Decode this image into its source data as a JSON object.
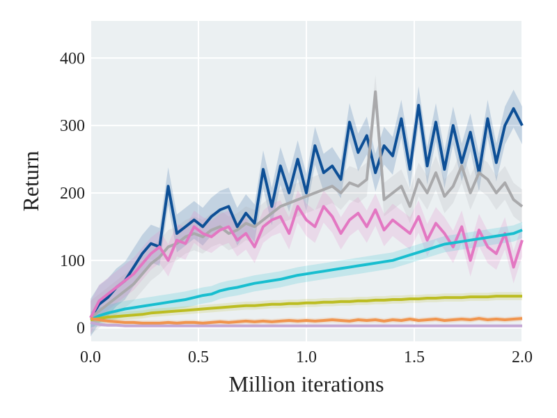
{
  "chart_data": {
    "type": "line",
    "xlabel": "Million iterations",
    "ylabel": "Return",
    "xlim": [
      0.0,
      2.0
    ],
    "ylim": [
      -20,
      455
    ],
    "xticks": [
      0.0,
      0.5,
      1.0,
      1.5,
      2.0
    ],
    "xtick_labels": [
      "0.0",
      "0.5",
      "1.0",
      "1.5",
      "2.0"
    ],
    "yticks": [
      0,
      100,
      200,
      300,
      400
    ],
    "ytick_labels": [
      "0",
      "100",
      "200",
      "300",
      "400"
    ],
    "grid": true,
    "background": "#ebf0f2",
    "x": [
      0.0,
      0.04,
      0.08,
      0.12,
      0.16,
      0.2,
      0.24,
      0.28,
      0.32,
      0.36,
      0.4,
      0.44,
      0.48,
      0.52,
      0.56,
      0.6,
      0.64,
      0.68,
      0.72,
      0.76,
      0.8,
      0.84,
      0.88,
      0.92,
      0.96,
      1.0,
      1.04,
      1.08,
      1.12,
      1.16,
      1.2,
      1.24,
      1.28,
      1.32,
      1.36,
      1.4,
      1.44,
      1.48,
      1.52,
      1.56,
      1.6,
      1.64,
      1.68,
      1.72,
      1.76,
      1.8,
      1.84,
      1.88,
      1.92,
      1.96,
      2.0
    ],
    "series": [
      {
        "color": "#0d4f96",
        "band": 28,
        "values": [
          15,
          35,
          45,
          60,
          70,
          90,
          110,
          125,
          120,
          210,
          140,
          150,
          160,
          150,
          165,
          175,
          180,
          150,
          170,
          155,
          235,
          180,
          240,
          200,
          250,
          200,
          270,
          230,
          240,
          220,
          305,
          260,
          285,
          230,
          270,
          255,
          310,
          235,
          330,
          240,
          305,
          235,
          300,
          245,
          290,
          230,
          310,
          245,
          300,
          325,
          300
        ]
      },
      {
        "color": "#a9a9ab",
        "band": 25,
        "values": [
          15,
          25,
          35,
          45,
          55,
          65,
          80,
          95,
          105,
          120,
          125,
          135,
          140,
          135,
          145,
          150,
          140,
          145,
          155,
          150,
          160,
          170,
          180,
          185,
          190,
          195,
          200,
          205,
          210,
          200,
          215,
          210,
          220,
          350,
          190,
          200,
          210,
          180,
          220,
          200,
          230,
          195,
          210,
          240,
          200,
          230,
          220,
          200,
          215,
          190,
          180
        ]
      },
      {
        "color": "#e377c2",
        "band": 24,
        "values": [
          15,
          40,
          50,
          60,
          70,
          80,
          95,
          110,
          120,
          100,
          130,
          125,
          150,
          140,
          135,
          145,
          150,
          130,
          140,
          120,
          150,
          160,
          165,
          140,
          180,
          160,
          150,
          180,
          165,
          140,
          160,
          170,
          150,
          175,
          145,
          160,
          150,
          140,
          165,
          130,
          155,
          140,
          120,
          150,
          100,
          145,
          120,
          110,
          140,
          90,
          130
        ]
      },
      {
        "color": "#17becf",
        "band": 12,
        "values": [
          12,
          18,
          22,
          25,
          28,
          30,
          32,
          34,
          36,
          38,
          40,
          42,
          45,
          48,
          50,
          55,
          58,
          60,
          63,
          66,
          68,
          70,
          72,
          75,
          78,
          80,
          82,
          84,
          86,
          88,
          90,
          92,
          94,
          96,
          98,
          100,
          104,
          108,
          112,
          116,
          120,
          124,
          126,
          128,
          130,
          132,
          134,
          136,
          138,
          140,
          145
        ]
      },
      {
        "color": "#bcbd22",
        "band": 6,
        "values": [
          12,
          14,
          16,
          17,
          18,
          19,
          20,
          22,
          23,
          24,
          25,
          26,
          27,
          28,
          29,
          30,
          31,
          32,
          33,
          33,
          34,
          35,
          35,
          36,
          36,
          37,
          37,
          38,
          38,
          39,
          39,
          40,
          40,
          41,
          41,
          42,
          42,
          43,
          43,
          44,
          44,
          45,
          45,
          45,
          46,
          46,
          46,
          47,
          47,
          47,
          47
        ]
      },
      {
        "color": "#f0944d",
        "band": 4,
        "values": [
          14,
          12,
          10,
          9,
          8,
          8,
          7,
          7,
          7,
          8,
          7,
          8,
          8,
          7,
          8,
          9,
          8,
          9,
          10,
          9,
          10,
          9,
          10,
          11,
          10,
          11,
          10,
          11,
          12,
          11,
          10,
          12,
          11,
          12,
          10,
          12,
          11,
          13,
          11,
          12,
          13,
          11,
          12,
          13,
          12,
          14,
          12,
          13,
          12,
          13,
          14
        ]
      },
      {
        "color": "#c4a8d4",
        "band": 2,
        "values": [
          8,
          5,
          4,
          4,
          3,
          3,
          3,
          3,
          3,
          3,
          3,
          3,
          3,
          3,
          3,
          3,
          3,
          3,
          3,
          3,
          3,
          3,
          3,
          3,
          3,
          3,
          3,
          3,
          3,
          3,
          3,
          3,
          3,
          3,
          3,
          3,
          3,
          3,
          3,
          3,
          3,
          3,
          3,
          3,
          3,
          3,
          3,
          3,
          3,
          3,
          3
        ]
      }
    ]
  }
}
